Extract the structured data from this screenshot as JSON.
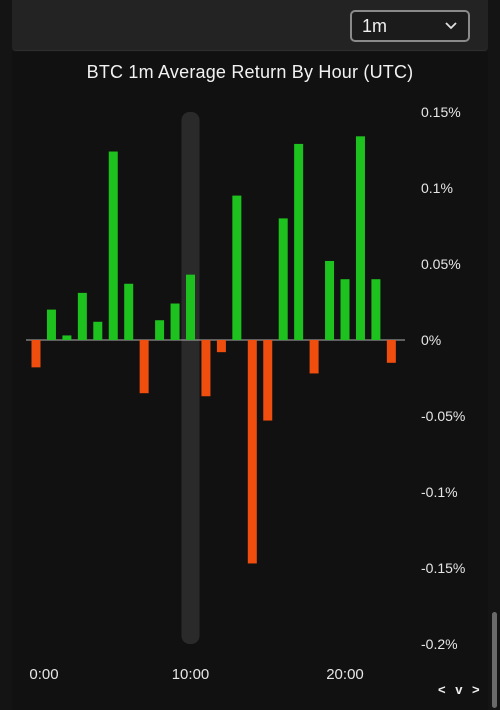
{
  "toolbar": {
    "timeframe": "1m",
    "chevron_icon": "chevron-down-icon"
  },
  "chart_data": {
    "type": "bar",
    "title": "BTC 1m Average Return By Hour (UTC)",
    "xlabel": "",
    "ylabel": "",
    "unit": "%",
    "ylim": [
      -0.2,
      0.15
    ],
    "yticks": [
      "0.15%",
      "0.1%",
      "0.05%",
      "0%",
      "-0.05%",
      "-0.1%",
      "-0.15%",
      "-0.2%"
    ],
    "xticks": [
      "0:00",
      "10:00",
      "20:00"
    ],
    "xtick_positions": [
      0,
      10,
      20
    ],
    "highlight_category": 10,
    "grid": false,
    "positive_color": "#1ec21e",
    "negative_color": "#f04e0e",
    "highlight_color": "#2a2a2a",
    "values": [
      -0.018,
      0.02,
      0.003,
      0.031,
      0.012,
      0.124,
      0.037,
      -0.035,
      0.013,
      0.024,
      0.043,
      -0.037,
      -0.008,
      0.095,
      -0.147,
      -0.053,
      0.08,
      0.129,
      -0.022,
      0.052,
      0.04,
      0.134,
      0.04,
      -0.015
    ]
  },
  "nav": {
    "label": "< v >"
  }
}
